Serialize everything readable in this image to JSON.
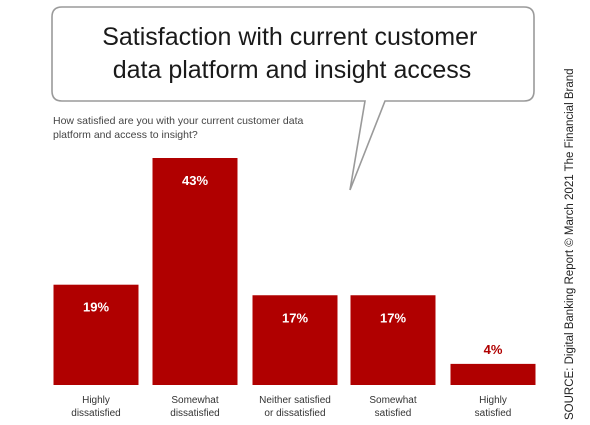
{
  "title_lines": [
    "Satisfaction with current customer",
    "data platform and insight access"
  ],
  "question_lines": [
    "How satisfied are you with your current customer data",
    "platform and access to insight?"
  ],
  "source": "SOURCE: Digital Banking Report © March 2021 The Financial Brand",
  "colors": {
    "bar": "#b00000",
    "label_inside": "#ffffff",
    "label_outside": "#b00000"
  },
  "chart_data": {
    "type": "bar",
    "categories": [
      [
        "Highly",
        "dissatisfied"
      ],
      [
        "Somewhat",
        "dissatisfied"
      ],
      [
        "Neither satisfied",
        "or dissatisfied"
      ],
      [
        "Somewhat",
        "satisfied"
      ],
      [
        "Highly",
        "satisfied"
      ]
    ],
    "values": [
      19,
      43,
      17,
      17,
      4
    ],
    "value_labels": [
      "19%",
      "43%",
      "17%",
      "17%",
      "4%"
    ],
    "ylim": [
      0,
      43
    ],
    "grid": false,
    "legend": "none"
  }
}
